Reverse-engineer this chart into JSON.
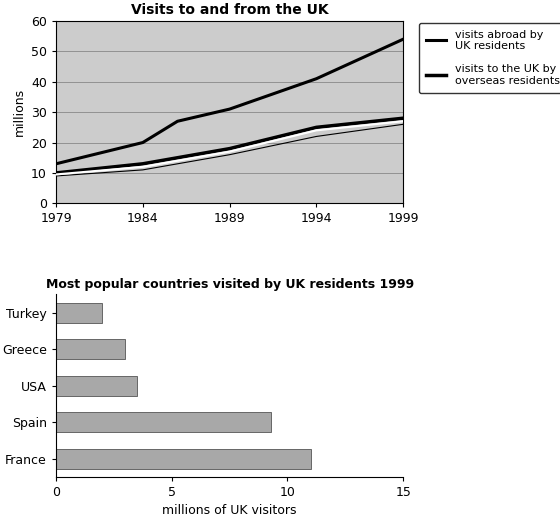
{
  "line_title": "Visits to and from the UK",
  "years": [
    1979,
    1984,
    1986,
    1989,
    1994,
    1999
  ],
  "visits_abroad": [
    13,
    20,
    27,
    31,
    41,
    54
  ],
  "visits_to_uk_upper": [
    10,
    13,
    15,
    18,
    25,
    28
  ],
  "visits_to_uk_mid": [
    9.5,
    12,
    14,
    17,
    24,
    27
  ],
  "visits_to_uk_lower": [
    9,
    11,
    13,
    16,
    22,
    26
  ],
  "line_ylabel": "millions",
  "line_ylim": [
    0,
    60
  ],
  "line_xticks": [
    1979,
    1984,
    1989,
    1994,
    1999
  ],
  "line_yticks": [
    0,
    10,
    20,
    30,
    40,
    50,
    60
  ],
  "line_title_text": "Visits to and from the UK",
  "legend_label1": "visits abroad by\nUK residents",
  "legend_label2": "visits to the UK by\noverseas residents",
  "bar_title": "Most popular countries visited by UK residents 1999",
  "countries": [
    "France",
    "Spain",
    "USA",
    "Greece",
    "Turkey"
  ],
  "bar_values": [
    11.0,
    9.3,
    3.5,
    3.0,
    2.0
  ],
  "bar_color": "#a8a8a8",
  "bar_xlabel": "millions of UK visitors",
  "bar_xlim": [
    0,
    15
  ],
  "bar_xticks": [
    0,
    5,
    10,
    15
  ],
  "plot_bg_line": "#cccccc",
  "plot_bg_bar": "#ffffff",
  "fig_bg": "#ffffff"
}
